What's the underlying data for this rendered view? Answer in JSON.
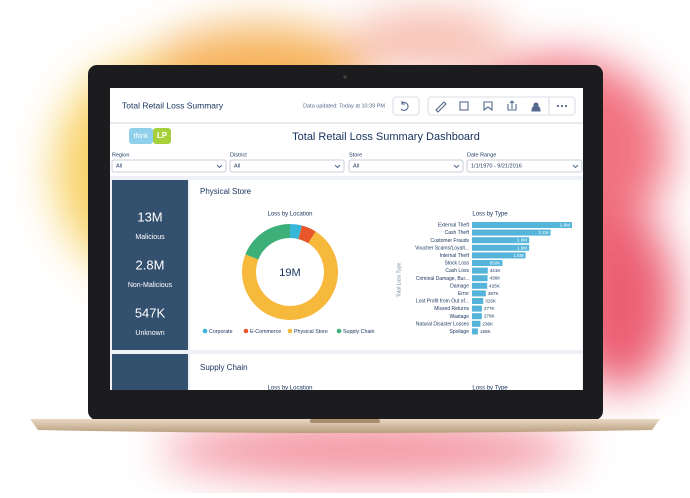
{
  "header": {
    "title": "Total Retail Loss Summary",
    "updated": "Data updated: Today at 10:39 PM"
  },
  "logo": {
    "text1": "think",
    "text2": "LP"
  },
  "dashboard_title": "Total Retail Loss Summary Dashboard",
  "filters": [
    {
      "label": "Region",
      "value": "All"
    },
    {
      "label": "District",
      "value": "All"
    },
    {
      "label": "Store",
      "value": "All"
    },
    {
      "label": "Date Range",
      "value": "1/1/1970 - 9/21/2016"
    }
  ],
  "kpis": [
    {
      "value": "13M",
      "label": "Malicious"
    },
    {
      "value": "2.8M",
      "label": "Non-Malicious"
    },
    {
      "value": "547K",
      "label": "Unknown"
    }
  ],
  "sections": [
    {
      "title": "Physical Store"
    },
    {
      "title": "Supply Chain",
      "left_title": "Loss by Location",
      "right_title": "Loss by Type"
    }
  ],
  "chart_data": [
    {
      "type": "pie",
      "title": "Loss by Location",
      "center_label": "19M",
      "categories": [
        "Corporate",
        "E-Commerce",
        "Physical Store",
        "Supply Chain"
      ],
      "values": [
        4,
        5,
        72,
        19
      ],
      "colors": [
        "#38b6d8",
        "#e8562a",
        "#f6b93c",
        "#3db07a"
      ]
    },
    {
      "type": "bar",
      "title": "Loss by Type",
      "y_label": "Total Loss Type",
      "color": "#54b4d9",
      "categories": [
        "External Theft",
        "Cash Theft",
        "Customer Frauds",
        "Voucher Scams/Loyalt...",
        "Internal Theft",
        "Stock Loss",
        "Cash Loss",
        "Criminal Damage, Bur...",
        "Damage",
        "Error",
        "Lost Profit from Out of...",
        "Missed Returns",
        "Wastage",
        "Natural Disaster Losses",
        "Spoilage"
      ],
      "values": [
        2800000,
        2200000,
        1600000,
        1600000,
        1500000,
        850000,
        441000,
        436000,
        425000,
        387000,
        315000,
        277000,
        276000,
        236000,
        165000
      ],
      "value_labels": [
        "2.8M",
        "2.2M",
        "1.6M",
        "1.6M",
        "1.5M",
        "850K",
        "441K",
        "436K",
        "425K",
        "387K",
        "315K",
        "277K",
        "276K",
        "236K",
        "165K"
      ]
    }
  ]
}
